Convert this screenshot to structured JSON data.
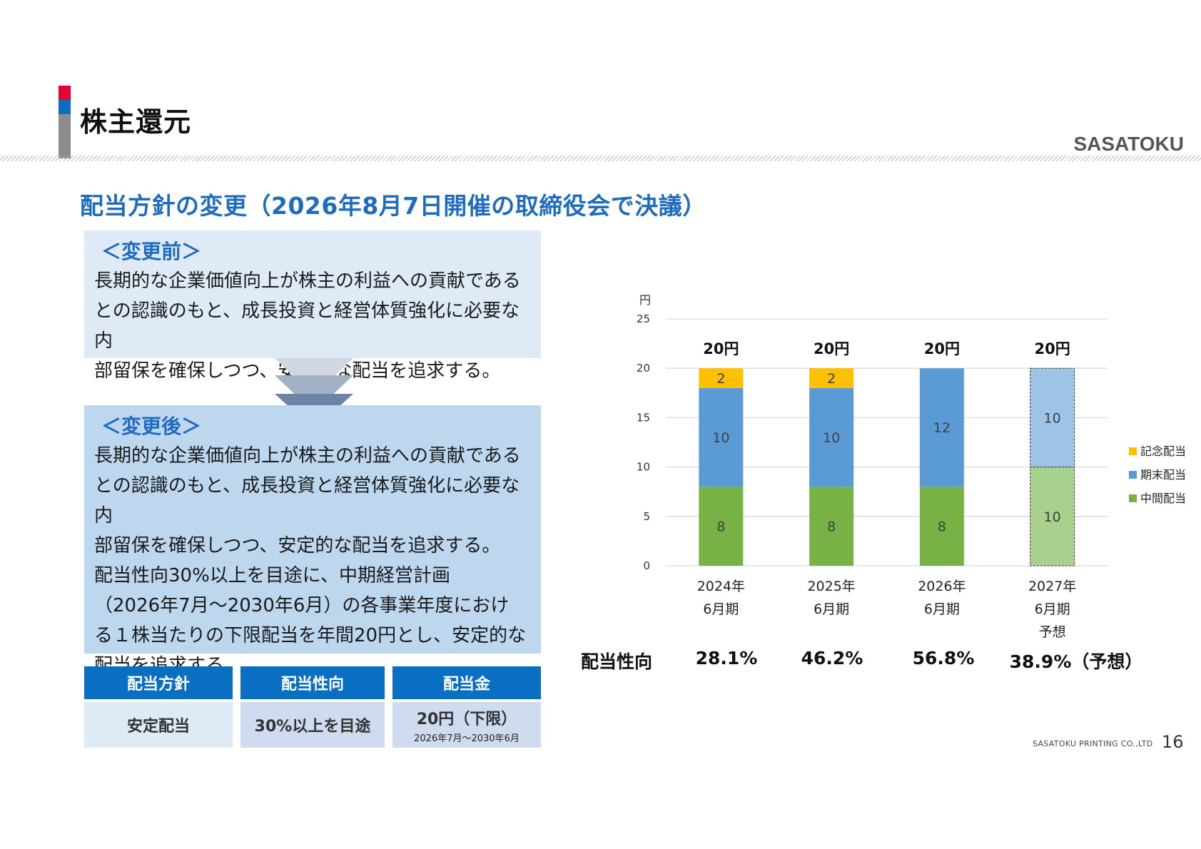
{
  "header": {
    "title": "株主還元",
    "logo": "SASATOKU",
    "accent_colors": [
      "#e60033",
      "#0a6fc2",
      "#8c8c8c"
    ]
  },
  "subheading": "配当方針の変更（2026年8月7日開催の取締役会で決議）",
  "before": {
    "label": "＜変更前＞",
    "lines": [
      "長期的な企業価値向上が株主の利益への貢献である",
      "との認識のもと、成長投資と経営体質強化に必要な内",
      "部留保を確保しつつ、安定的な配当を追求する。"
    ]
  },
  "after": {
    "label": "＜変更後＞",
    "lines": [
      "長期的な企業価値向上が株主の利益への貢献である",
      "との認識のもと、成長投資と経営体質強化に必要な内",
      "部留保を確保しつつ、安定的な配当を追求する。",
      "配当性向30%以上を目途に、中期経営計画",
      "（2026年7月～2030年6月）の各事業年度におけ",
      "る１株当たりの下限配当を年間20円とし、安定的な",
      "配当を追求する。"
    ]
  },
  "table": {
    "headers": [
      "配当方針",
      "配当性向",
      "配当金"
    ],
    "cells": [
      "安定配当",
      "30%以上を目途",
      "20円（下限）"
    ],
    "cell_sub": "2026年7月～2030年6月"
  },
  "chart_data": {
    "type": "bar",
    "stacked": true,
    "unit_label": "円",
    "ylim": [
      0,
      25
    ],
    "yticks": [
      0,
      5,
      10,
      15,
      20,
      25
    ],
    "grid": true,
    "legend_position": "right",
    "categories": [
      [
        "2024年",
        "6月期"
      ],
      [
        "2025年",
        "6月期"
      ],
      [
        "2026年",
        "6月期"
      ],
      [
        "2027年",
        "6月期",
        "予想"
      ]
    ],
    "series": [
      {
        "name": "中間配当",
        "color": "#77b244",
        "forecast_color": "#a9d18e",
        "values": [
          8,
          8,
          8,
          10
        ]
      },
      {
        "name": "期末配当",
        "color": "#5b9bd5",
        "forecast_color": "#9dc3e6",
        "values": [
          10,
          10,
          12,
          10
        ]
      },
      {
        "name": "記念配当",
        "color": "#ffc000",
        "forecast_color": "#ffd966",
        "values": [
          2,
          2,
          0,
          0
        ]
      }
    ],
    "totals": [
      "20円",
      "20円",
      "20円",
      "20円"
    ],
    "forecast_index": 3
  },
  "payout": {
    "label": "配当性向",
    "values": [
      "28.1%",
      "46.2%",
      "56.8%",
      "38.9%（予想）"
    ]
  },
  "footer": {
    "company": "SASATOKU PRINTING CO.,LTD",
    "page": "16"
  }
}
